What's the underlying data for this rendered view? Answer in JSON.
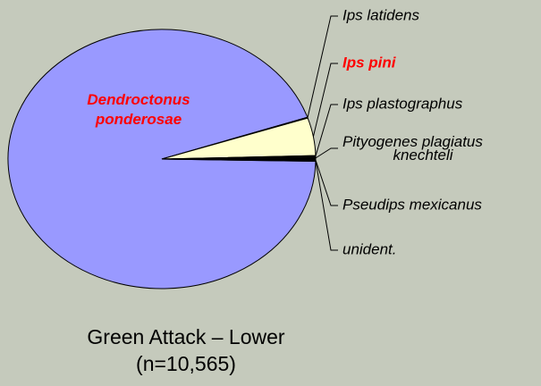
{
  "chart_data": {
    "type": "pie",
    "title": "Green Attack – Lower",
    "subtitle": "(n=10,565)",
    "categories": [
      "Dendroctonus ponderosae",
      "Ips latidens",
      "Ips pini",
      "Ips plastographus",
      "Pityogenes plagiatus knechteli",
      "Pseudips mexicanus",
      "unident."
    ],
    "values": [
      94.5,
      0.1,
      4.7,
      0.1,
      0.4,
      0.1,
      0.1
    ],
    "colors": [
      "#9999ff",
      "#ffffcc",
      "#ffffcc",
      "#ffffcc",
      "#000000",
      "#ffffcc",
      "#ffffcc"
    ],
    "highlighted": [
      "Dendroctonus ponderosae",
      "Ips pini"
    ]
  }
}
